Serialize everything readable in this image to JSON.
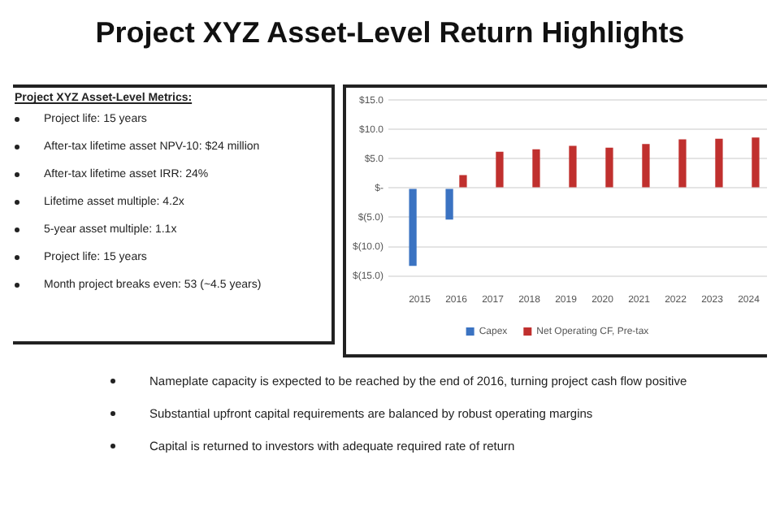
{
  "chart_data": {
    "type": "bar",
    "title": "Project XYZ Asset-Level Return Highlights",
    "categories": [
      "2015",
      "2016",
      "2017",
      "2018",
      "2019",
      "2020",
      "2021",
      "2022",
      "2023",
      "2024"
    ],
    "series": [
      {
        "name": "Capex",
        "color": "#3b73c2",
        "values": [
          -13.3,
          -5.4,
          null,
          null,
          null,
          null,
          null,
          null,
          null,
          null
        ]
      },
      {
        "name": "Net Operating CF, Pre-tax",
        "color": "#c0302e",
        "values": [
          null,
          2.2,
          6.2,
          6.6,
          7.2,
          6.9,
          7.5,
          8.3,
          8.4,
          8.6
        ]
      }
    ],
    "ylim": [
      -15,
      15
    ],
    "yticks": [
      {
        "value": -15,
        "label": "$(15.0)"
      },
      {
        "value": -10,
        "label": "$(10.0)"
      },
      {
        "value": -5,
        "label": "$(5.0)"
      },
      {
        "value": 0,
        "label": "$-"
      },
      {
        "value": 5,
        "label": "$5.0"
      },
      {
        "value": 10,
        "label": "$10.0"
      },
      {
        "value": 15,
        "label": "$15.0"
      }
    ],
    "grid": "y",
    "legend": "bottom",
    "annotations": [
      "Project XYZ Asset-Level Metrics:",
      "Project life: 15 years",
      "After-tax lifetime asset NPV-10: $24 million",
      "After-tax lifetime asset IRR: 24%",
      "Lifetime asset multiple: 4.2x",
      "5-year asset multiple: 1.1x",
      "Project life: 15 years",
      "Month project breaks even: 53 (~4.5 years)",
      "Nameplate capacity is expected to be reached by the end of 2016, turning project cash flow positive",
      "Substantial upfront capital requirements are balanced by robust operating margins",
      "Capital is returned to investors with adequate required rate of return"
    ]
  }
}
